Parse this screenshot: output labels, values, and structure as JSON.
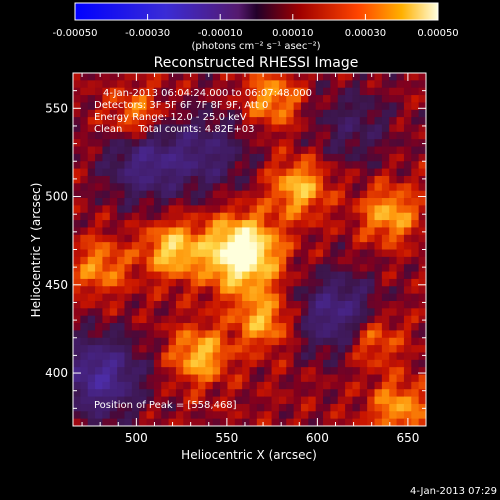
{
  "colorbar": {
    "ticks": [
      -0.0005,
      -0.0003,
      -0.0001,
      0.0001,
      0.0003,
      0.0005
    ],
    "tick_labels": [
      "-0.00050",
      "-0.00030",
      "-0.00010",
      "0.00010",
      "0.00030",
      "0.00050"
    ],
    "range": [
      -0.0005,
      0.0005
    ],
    "unit_label": "(photons cm⁻² s⁻¹ asec⁻²)"
  },
  "chart_data": {
    "type": "heatmap",
    "title": "Reconstructed RHESSI Image",
    "xlabel": "Heliocentric X (arcsec)",
    "ylabel": "Heliocentric Y (arcsec)",
    "xlim": [
      465,
      660
    ],
    "ylim": [
      370,
      570
    ],
    "xticks": [
      500,
      550,
      600,
      650
    ],
    "yticks": [
      400,
      450,
      500,
      550
    ],
    "peak": [
      558,
      468
    ],
    "bright_spots": [
      {
        "x": 558,
        "y": 468,
        "rel": 1.0
      },
      {
        "x": 520,
        "y": 470,
        "rel": 0.6
      },
      {
        "x": 590,
        "y": 505,
        "rel": 0.55
      },
      {
        "x": 535,
        "y": 410,
        "rel": 0.55
      },
      {
        "x": 570,
        "y": 430,
        "rel": 0.5
      },
      {
        "x": 640,
        "y": 490,
        "rel": 0.5
      },
      {
        "x": 630,
        "y": 420,
        "rel": 0.45
      },
      {
        "x": 500,
        "y": 545,
        "rel": 0.45
      },
      {
        "x": 575,
        "y": 555,
        "rel": 0.45
      },
      {
        "x": 645,
        "y": 380,
        "rel": 0.45
      },
      {
        "x": 480,
        "y": 460,
        "rel": 0.4
      }
    ],
    "dark_spots": [
      {
        "x": 480,
        "y": 398,
        "rel": -0.7
      },
      {
        "x": 505,
        "y": 520,
        "rel": -0.55
      },
      {
        "x": 612,
        "y": 433,
        "rel": -0.6
      },
      {
        "x": 540,
        "y": 525,
        "rel": -0.4
      },
      {
        "x": 620,
        "y": 540,
        "rel": -0.3
      }
    ]
  },
  "annotations": {
    "time_range": "4-Jan-2013 06:04:24.000 to 06:07:48.000",
    "detectors": "Detectors: 3F 5F 6F 7F 8F 9F, Att 0",
    "energy": "Energy Range: 12.0 - 25.0 keV",
    "clean": "Clean     Total counts: 4.82E+03",
    "peak_label": "Position of Peak = [558,468]"
  },
  "footer": {
    "timestamp": "4-Jan-2013 07:29"
  },
  "colors": {
    "background": "#000000",
    "foreground": "#ffffff"
  }
}
